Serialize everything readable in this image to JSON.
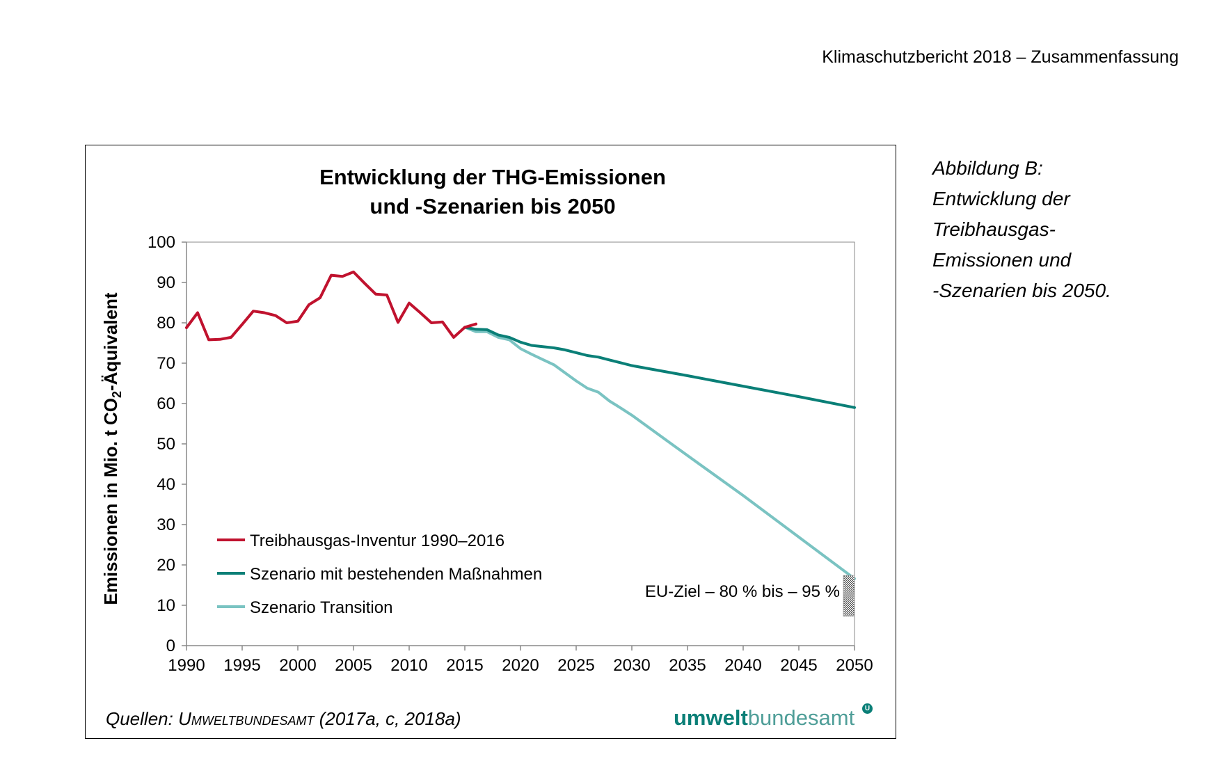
{
  "header": {
    "text": "Klimaschutzbericht 2018 – Zusammenfassung"
  },
  "caption": {
    "lines": [
      "Abbildung B:",
      "Entwicklung der",
      "Treibhausgas-",
      "Emissionen und",
      "-Szenarien bis 2050."
    ]
  },
  "source": {
    "prefix": "Quellen: ",
    "org": "Umweltbundesamt",
    "suffix": " (2017a, c, 2018a)"
  },
  "logo": {
    "bold": "umwelt",
    "regular": "bundesamt",
    "mark": "U"
  },
  "chart_data": {
    "type": "line",
    "title_line1": "Entwicklung der THG-Emissionen",
    "title_line2": "und -Szenarien bis 2050",
    "ylabel_prefix": "Emissionen in Mio. t CO",
    "ylabel_sub": "2",
    "ylabel_suffix": "-Äquivalent",
    "xlim": [
      1990,
      2050
    ],
    "ylim": [
      0,
      100
    ],
    "x_ticks": [
      1990,
      1995,
      2000,
      2005,
      2010,
      2015,
      2020,
      2025,
      2030,
      2035,
      2040,
      2045,
      2050
    ],
    "y_ticks": [
      0,
      10,
      20,
      30,
      40,
      50,
      60,
      70,
      80,
      90,
      100
    ],
    "grid": false,
    "legend_position": "bottom-left",
    "series": [
      {
        "name": "Treibhausgas-Inventur 1990–2016",
        "color": "#c0122e",
        "x": [
          1990,
          1991,
          1992,
          1993,
          1994,
          1995,
          1996,
          1997,
          1998,
          1999,
          2000,
          2001,
          2002,
          2003,
          2004,
          2005,
          2006,
          2007,
          2008,
          2009,
          2010,
          2011,
          2012,
          2013,
          2014,
          2015,
          2016
        ],
        "y": [
          78.8,
          82.5,
          75.8,
          75.9,
          76.4,
          79.6,
          82.9,
          82.5,
          81.8,
          80.0,
          80.4,
          84.5,
          86.2,
          91.8,
          91.5,
          92.6,
          89.8,
          87.1,
          86.9,
          80.1,
          84.9,
          82.5,
          80.0,
          80.2,
          76.4,
          78.9,
          79.7
        ]
      },
      {
        "name": "Szenario mit bestehenden Maßnahmen",
        "color": "#0a7f77",
        "x": [
          2015,
          2016,
          2017,
          2018,
          2019,
          2020,
          2021,
          2022,
          2023,
          2024,
          2025,
          2026,
          2027,
          2028,
          2029,
          2030,
          2035,
          2040,
          2045,
          2050
        ],
        "y": [
          78.9,
          78.4,
          78.3,
          77.0,
          76.4,
          75.2,
          74.4,
          74.1,
          73.8,
          73.3,
          72.6,
          71.9,
          71.5,
          70.8,
          70.1,
          69.4,
          66.9,
          64.3,
          61.7,
          59.0
        ]
      },
      {
        "name": "Szenario Transition",
        "color": "#7ac3c2",
        "x": [
          2015,
          2016,
          2017,
          2018,
          2019,
          2020,
          2021,
          2022,
          2023,
          2024,
          2025,
          2026,
          2027,
          2028,
          2029,
          2030,
          2035,
          2040,
          2045,
          2050
        ],
        "y": [
          78.9,
          77.8,
          77.8,
          76.4,
          75.8,
          73.6,
          72.2,
          70.9,
          69.6,
          67.6,
          65.6,
          63.8,
          62.8,
          60.6,
          58.9,
          57.1,
          47.1,
          37.2,
          26.9,
          16.6
        ]
      }
    ],
    "target_band": {
      "label": "EU-Ziel – 80 % bis – 95 %",
      "x": 2049.5,
      "y_low": 7.3,
      "y_high": 17.4
    }
  }
}
